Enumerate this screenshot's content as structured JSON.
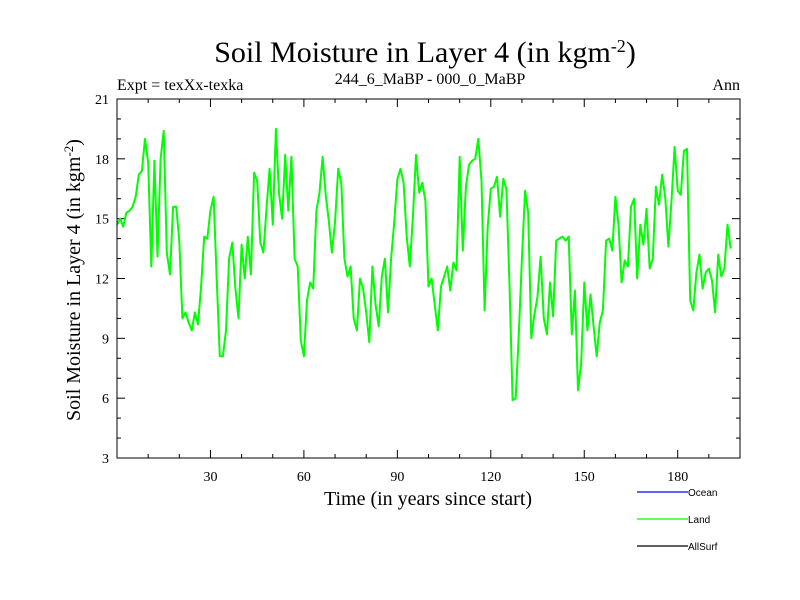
{
  "chart_data": {
    "type": "line",
    "title": "Soil Moisture in Layer 4 (in kgm",
    "title_sup": "-2",
    "title_end": ")",
    "subtitle_left": "Expt = texXx-texka",
    "subtitle_center": "244_6_MaBP - 000_0_MaBP",
    "subtitle_right": "Ann",
    "xlabel": "Time (in years since start)",
    "ylabel": "Soil Moisture in Layer 4 (in kgm",
    "ylabel_sup": "-2",
    "ylabel_end": ")",
    "xlim": [
      0,
      200
    ],
    "ylim": [
      3,
      21
    ],
    "xticks": [
      30,
      60,
      90,
      120,
      150,
      180
    ],
    "yticks": [
      3,
      6,
      9,
      12,
      15,
      18,
      21
    ],
    "legend": [
      {
        "name": "Ocean",
        "color": "#0000ff"
      },
      {
        "name": "Land",
        "color": "#00ff00"
      },
      {
        "name": "AllSurf",
        "color": "#000000"
      }
    ],
    "series": [
      {
        "name": "Land",
        "color": "#00ff00",
        "x_start": 0,
        "x_step": 1,
        "values": [
          14.7,
          15.0,
          14.6,
          15.3,
          15.4,
          15.6,
          16.1,
          17.2,
          17.4,
          19.0,
          17.8,
          12.6,
          17.9,
          13.1,
          18.0,
          19.4,
          13.3,
          12.2,
          15.6,
          15.6,
          13.9,
          10.0,
          10.3,
          9.8,
          9.4,
          10.3,
          9.7,
          11.6,
          14.1,
          14.0,
          15.4,
          16.1,
          12.0,
          8.1,
          8.1,
          9.4,
          13.0,
          13.8,
          11.5,
          10.0,
          13.7,
          12.0,
          14.1,
          12.2,
          17.3,
          16.9,
          13.8,
          13.3,
          15.5,
          17.5,
          14.7,
          19.5,
          16.3,
          15.0,
          18.2,
          15.4,
          18.1,
          13.0,
          12.6,
          8.9,
          8.1,
          10.9,
          11.8,
          11.5,
          15.4,
          16.3,
          18.1,
          16.2,
          14.9,
          13.3,
          14.8,
          17.5,
          16.8,
          13.0,
          12.1,
          12.6,
          10.0,
          9.4,
          12.0,
          11.5,
          10.3,
          8.8,
          12.6,
          10.7,
          9.6,
          12.1,
          13.0,
          10.3,
          13.0,
          14.8,
          17.0,
          17.5,
          16.8,
          14.1,
          12.6,
          15.1,
          18.2,
          16.3,
          16.8,
          15.9,
          11.6,
          12.0,
          10.7,
          9.4,
          11.6,
          12.1,
          12.6,
          11.4,
          12.8,
          12.4,
          18.1,
          13.4,
          16.6,
          17.7,
          17.9,
          18.0,
          19.0,
          16.9,
          10.4,
          14.6,
          16.5,
          16.6,
          17.1,
          15.1,
          17.0,
          16.5,
          11.7,
          5.9,
          6.0,
          9.2,
          13.1,
          16.4,
          15.3,
          9.0,
          10.2,
          11.1,
          13.1,
          10.0,
          9.2,
          11.8,
          10.1,
          13.9,
          14.0,
          14.1,
          13.9,
          14.1,
          9.2,
          11.4,
          6.4,
          7.7,
          11.8,
          9.4,
          11.2,
          9.6,
          8.1,
          9.8,
          10.4,
          13.9,
          14.0,
          13.4,
          16.1,
          14.7,
          11.8,
          12.9,
          12.6,
          15.6,
          16.0,
          12.0,
          14.7,
          13.7,
          15.5,
          12.5,
          13.0,
          16.6,
          15.7,
          17.2,
          16.1,
          13.6,
          15.9,
          18.6,
          16.4,
          16.2,
          18.4,
          18.5,
          10.9,
          10.4,
          12.3,
          13.2,
          11.5,
          12.3,
          12.5,
          11.9,
          10.3,
          13.2,
          12.1,
          12.5,
          14.7,
          13.5
        ]
      }
    ]
  }
}
